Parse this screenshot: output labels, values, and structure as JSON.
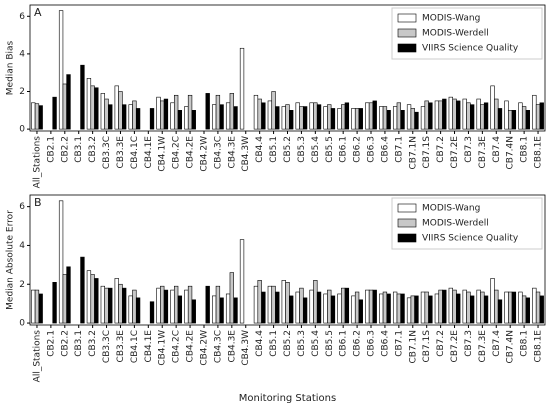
{
  "chart_data": [
    {
      "type": "bar",
      "panel_label": "A",
      "ylabel": "Median Bias",
      "categories": [
        "All_Stations",
        "CB2.1",
        "CB2.2",
        "CB3.1",
        "CB3.2",
        "CB3.3C",
        "CB3.3E",
        "CB4.1C",
        "CB4.1E",
        "CB4.1W",
        "CB4.2C",
        "CB4.2E",
        "CB4.2W",
        "CB4.3C",
        "CB4.3E",
        "CB4.3W",
        "CB4.4",
        "CB5.1",
        "CB5.2",
        "CB5.3",
        "CB5.4",
        "CB5.5",
        "CB6.1",
        "CB6.2",
        "CB6.3",
        "CB6.4",
        "CB7.1",
        "CB7.1N",
        "CB7.1S",
        "CB7.2",
        "CB7.2E",
        "CB7.3",
        "CB7.3E",
        "CB7.4",
        "CB7.4N",
        "CB8.1",
        "CB8.1E"
      ],
      "series": [
        {
          "name": "MODIS-Wang",
          "color": "#ffffff",
          "values": [
            1.4,
            null,
            6.3,
            null,
            2.7,
            1.9,
            2.3,
            1.3,
            null,
            1.7,
            1.4,
            1.2,
            null,
            1.3,
            1.4,
            4.3,
            1.8,
            1.5,
            1.2,
            1.4,
            1.4,
            1.2,
            1.1,
            1.1,
            1.4,
            1.2,
            1.2,
            1.3,
            1.2,
            1.5,
            1.7,
            1.6,
            1.6,
            2.3,
            1.5,
            1.4,
            1.8
          ]
        },
        {
          "name": "MODIS-Werdell",
          "color": "#c8c8c8",
          "values": [
            1.35,
            null,
            2.4,
            null,
            2.3,
            1.6,
            2.0,
            1.5,
            null,
            1.5,
            1.8,
            1.8,
            null,
            1.8,
            1.9,
            null,
            1.6,
            2.0,
            1.3,
            1.2,
            1.4,
            1.3,
            1.3,
            1.1,
            1.4,
            1.2,
            1.4,
            1.1,
            1.5,
            1.5,
            1.6,
            1.4,
            1.3,
            1.6,
            1.0,
            1.2,
            1.3
          ]
        },
        {
          "name": "VIIRS Science Quality",
          "color": "#000000",
          "values": [
            1.25,
            1.7,
            2.9,
            3.4,
            2.2,
            1.3,
            1.3,
            1.1,
            1.1,
            1.6,
            1.0,
            1.0,
            1.9,
            1.3,
            1.2,
            null,
            1.4,
            1.2,
            1.0,
            1.2,
            1.3,
            1.1,
            1.4,
            1.1,
            1.5,
            1.0,
            1.0,
            0.9,
            1.4,
            1.6,
            1.5,
            1.3,
            1.4,
            1.1,
            1.0,
            1.0,
            1.4
          ]
        }
      ],
      "ylim": [
        -0.1,
        6.6
      ],
      "yticks": [
        0,
        2,
        4,
        6
      ],
      "legend": "upper right"
    },
    {
      "type": "bar",
      "panel_label": "B",
      "ylabel": "Median Absolute Error",
      "xlabel": "Monitoring Stations",
      "categories": [
        "All_Stations",
        "CB2.1",
        "CB2.2",
        "CB3.1",
        "CB3.2",
        "CB3.3C",
        "CB3.3E",
        "CB4.1C",
        "CB4.1E",
        "CB4.1W",
        "CB4.2C",
        "CB4.2E",
        "CB4.2W",
        "CB4.3C",
        "CB4.3E",
        "CB4.3W",
        "CB4.4",
        "CB5.1",
        "CB5.2",
        "CB5.3",
        "CB5.4",
        "CB5.5",
        "CB6.1",
        "CB6.2",
        "CB6.3",
        "CB6.4",
        "CB7.1",
        "CB7.1N",
        "CB7.1S",
        "CB7.2",
        "CB7.2E",
        "CB7.3",
        "CB7.3E",
        "CB7.4",
        "CB7.4N",
        "CB8.1",
        "CB8.1E"
      ],
      "series": [
        {
          "name": "MODIS-Wang",
          "color": "#ffffff",
          "values": [
            1.7,
            null,
            6.3,
            null,
            2.7,
            1.9,
            2.3,
            1.4,
            null,
            1.8,
            1.7,
            1.7,
            null,
            1.4,
            1.5,
            4.3,
            1.9,
            1.9,
            2.2,
            1.6,
            1.7,
            1.5,
            1.5,
            1.4,
            1.7,
            1.5,
            1.6,
            1.3,
            1.6,
            1.5,
            1.8,
            1.7,
            1.7,
            2.3,
            1.6,
            1.6,
            1.8
          ]
        },
        {
          "name": "MODIS-Werdell",
          "color": "#c8c8c8",
          "values": [
            1.7,
            null,
            2.5,
            null,
            2.5,
            1.8,
            2.0,
            1.7,
            null,
            1.9,
            1.9,
            1.9,
            null,
            1.9,
            2.6,
            null,
            2.2,
            1.9,
            2.1,
            1.8,
            2.2,
            1.7,
            1.8,
            1.6,
            1.7,
            1.6,
            1.5,
            1.4,
            1.6,
            1.7,
            1.7,
            1.6,
            1.6,
            1.7,
            1.6,
            1.4,
            1.6
          ]
        },
        {
          "name": "VIIRS Science Quality",
          "color": "#000000",
          "values": [
            1.5,
            2.1,
            2.9,
            3.4,
            2.3,
            1.8,
            1.8,
            1.3,
            1.1,
            1.7,
            1.4,
            1.2,
            1.9,
            1.3,
            1.3,
            null,
            1.6,
            1.6,
            1.4,
            1.3,
            1.6,
            1.4,
            1.8,
            1.2,
            1.7,
            1.5,
            1.5,
            1.4,
            1.4,
            1.7,
            1.5,
            1.4,
            1.4,
            1.2,
            1.6,
            1.3,
            1.4
          ]
        }
      ],
      "ylim": [
        -0.1,
        6.6
      ],
      "yticks": [
        0,
        2,
        4,
        6
      ],
      "legend": "upper right"
    }
  ]
}
